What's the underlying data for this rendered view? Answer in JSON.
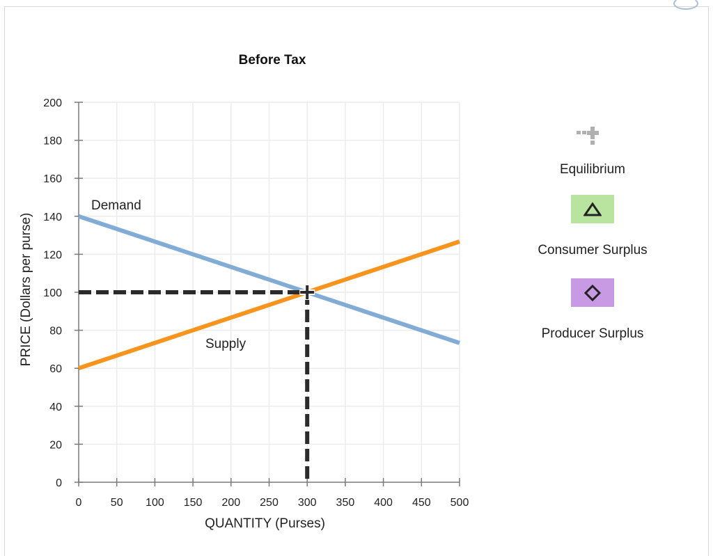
{
  "chart_data": {
    "type": "line",
    "title": "Before Tax",
    "xlabel": "QUANTITY (Purses)",
    "ylabel": "PRICE (Dollars per purse)",
    "xlim": [
      0,
      500
    ],
    "ylim": [
      0,
      200
    ],
    "x_ticks": [
      0,
      50,
      100,
      150,
      200,
      250,
      300,
      350,
      400,
      450,
      500
    ],
    "y_ticks": [
      0,
      20,
      40,
      60,
      80,
      100,
      120,
      140,
      160,
      180,
      200
    ],
    "grid": true,
    "series": [
      {
        "name": "Demand",
        "color": "#80acd6",
        "x": [
          0,
          500
        ],
        "y": [
          140,
          73.3
        ]
      },
      {
        "name": "Supply",
        "color": "#f7941d",
        "x": [
          0,
          500
        ],
        "y": [
          60,
          126.7
        ]
      }
    ],
    "equilibrium": {
      "x": 300,
      "y": 100
    },
    "legend_position": "right"
  },
  "legend": {
    "items": [
      {
        "label": "Equilibrium",
        "icon": "plus-icon",
        "color": "#b0b0b0"
      },
      {
        "label": "Consumer Surplus",
        "icon": "triangle-icon",
        "color": "#b9e4a0"
      },
      {
        "label": "Producer Surplus",
        "icon": "diamond-icon",
        "color": "#c99ae4"
      }
    ]
  }
}
